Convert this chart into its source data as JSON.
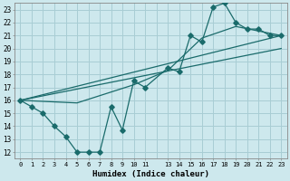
{
  "xlabel": "Humidex (Indice chaleur)",
  "background_color": "#cde8ed",
  "grid_color": "#a8cdd4",
  "line_color": "#1a6b6b",
  "xlim": [
    -0.5,
    23.5
  ],
  "ylim": [
    11.5,
    23.5
  ],
  "yticks": [
    12,
    13,
    14,
    15,
    16,
    17,
    18,
    19,
    20,
    21,
    22,
    23
  ],
  "xtick_positions": [
    0,
    1,
    2,
    3,
    4,
    5,
    6,
    7,
    8,
    9,
    10,
    11,
    13,
    14,
    15,
    16,
    17,
    18,
    19,
    20,
    21,
    22,
    23
  ],
  "xtick_labels": [
    "0",
    "1",
    "2",
    "3",
    "4",
    "5",
    "6",
    "7",
    "8",
    "9",
    "10",
    "11",
    "13",
    "14",
    "15",
    "16",
    "17",
    "18",
    "19",
    "20",
    "21",
    "22",
    "23"
  ],
  "series1_x": [
    0,
    1,
    2,
    3,
    4,
    5,
    6,
    7,
    8,
    9,
    10,
    11,
    13,
    14,
    15,
    16,
    17,
    18,
    19,
    20,
    21,
    22,
    23
  ],
  "series1_y": [
    16.0,
    15.5,
    15.0,
    14.0,
    13.2,
    12.0,
    12.0,
    12.0,
    15.5,
    13.7,
    17.5,
    17.0,
    18.5,
    18.2,
    21.0,
    20.5,
    23.2,
    23.5,
    22.0,
    21.5,
    21.5,
    21.0,
    21.0
  ],
  "series2_x": [
    0,
    5,
    10,
    13,
    16,
    19,
    23
  ],
  "series2_y": [
    16.0,
    15.8,
    17.2,
    18.3,
    20.8,
    21.7,
    21.0
  ],
  "series3_x": [
    0,
    23
  ],
  "series3_y": [
    16.0,
    21.0
  ],
  "series4_x": [
    0,
    23
  ],
  "series4_y": [
    16.0,
    20.0
  ]
}
